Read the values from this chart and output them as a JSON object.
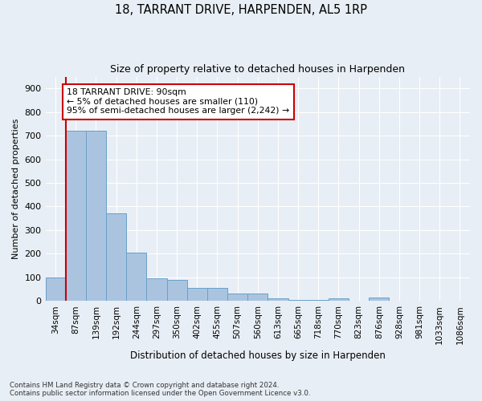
{
  "title": "18, TARRANT DRIVE, HARPENDEN, AL5 1RP",
  "subtitle": "Size of property relative to detached houses in Harpenden",
  "xlabel": "Distribution of detached houses by size in Harpenden",
  "ylabel": "Number of detached properties",
  "bin_labels": [
    "34sqm",
    "87sqm",
    "139sqm",
    "192sqm",
    "244sqm",
    "297sqm",
    "350sqm",
    "402sqm",
    "455sqm",
    "507sqm",
    "560sqm",
    "613sqm",
    "665sqm",
    "718sqm",
    "770sqm",
    "823sqm",
    "876sqm",
    "928sqm",
    "981sqm",
    "1033sqm",
    "1086sqm"
  ],
  "bar_heights": [
    100,
    720,
    720,
    370,
    205,
    95,
    90,
    55,
    55,
    30,
    30,
    10,
    5,
    5,
    10,
    0,
    15,
    0,
    0,
    0,
    0
  ],
  "bar_color": "#aac4e0",
  "bar_edge_color": "#6a9fc8",
  "annotation_line1": "18 TARRANT DRIVE: 90sqm",
  "annotation_line2": "← 5% of detached houses are smaller (110)",
  "annotation_line3": "95% of semi-detached houses are larger (2,242) →",
  "annotation_box_color": "#ffffff",
  "annotation_box_edge": "#cc0000",
  "vline_color": "#cc0000",
  "ylim": [
    0,
    950
  ],
  "yticks": [
    0,
    100,
    200,
    300,
    400,
    500,
    600,
    700,
    800,
    900
  ],
  "footnote1": "Contains HM Land Registry data © Crown copyright and database right 2024.",
  "footnote2": "Contains public sector information licensed under the Open Government Licence v3.0.",
  "background_color": "#e8eef5",
  "grid_color": "#ffffff"
}
